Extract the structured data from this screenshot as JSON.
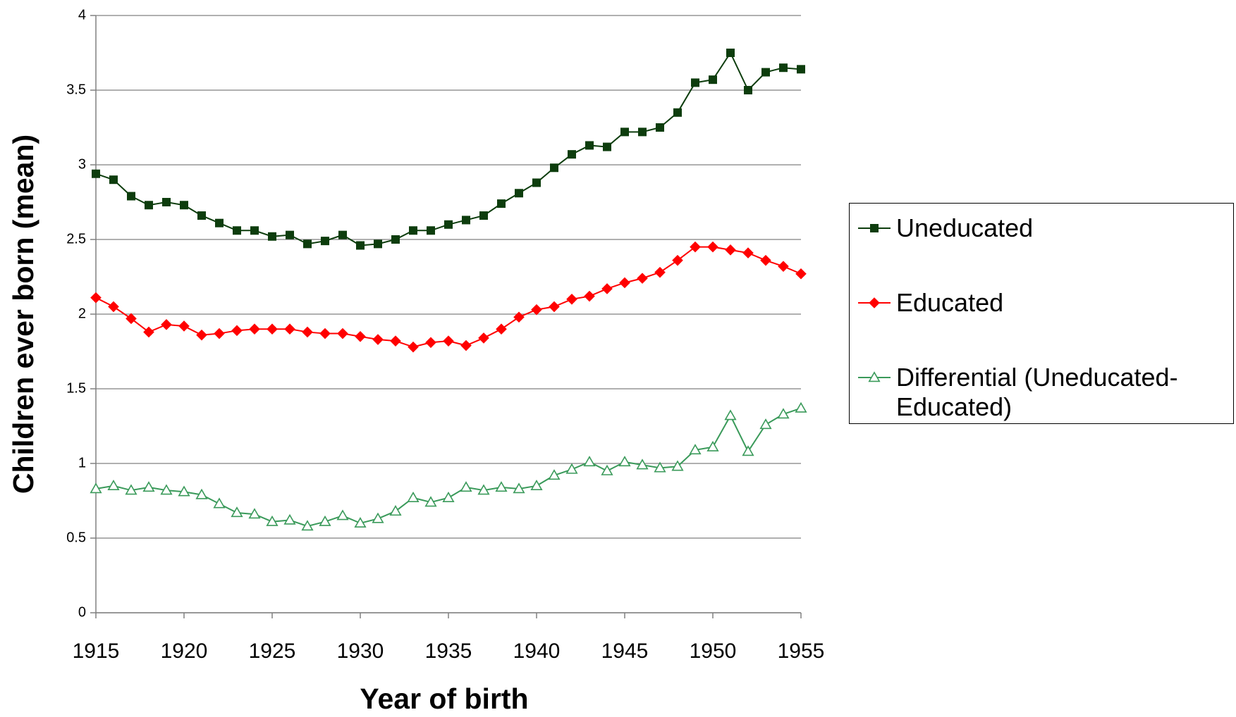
{
  "chart_data": {
    "type": "line",
    "x_label": "Year of birth",
    "y_label": "Children ever born (mean)",
    "x": [
      1915,
      1916,
      1917,
      1918,
      1919,
      1920,
      1921,
      1922,
      1923,
      1924,
      1925,
      1926,
      1927,
      1928,
      1929,
      1930,
      1931,
      1932,
      1933,
      1934,
      1935,
      1936,
      1937,
      1938,
      1939,
      1940,
      1941,
      1942,
      1943,
      1944,
      1945,
      1946,
      1947,
      1948,
      1949,
      1950,
      1951,
      1952,
      1953,
      1954,
      1955
    ],
    "series": [
      {
        "name": "Uneducated",
        "color": "#0d3d0d",
        "marker": "square",
        "values": [
          2.94,
          2.9,
          2.79,
          2.73,
          2.75,
          2.73,
          2.66,
          2.61,
          2.56,
          2.56,
          2.52,
          2.53,
          2.47,
          2.49,
          2.53,
          2.46,
          2.47,
          2.5,
          2.56,
          2.56,
          2.6,
          2.63,
          2.66,
          2.74,
          2.81,
          2.88,
          2.98,
          3.07,
          3.13,
          3.12,
          3.22,
          3.22,
          3.25,
          3.35,
          3.55,
          3.57,
          3.75,
          3.5,
          3.62,
          3.65,
          3.64
        ]
      },
      {
        "name": "Educated",
        "color": "#ff0000",
        "marker": "diamond",
        "values": [
          2.11,
          2.05,
          1.97,
          1.88,
          1.93,
          1.92,
          1.86,
          1.87,
          1.89,
          1.9,
          1.9,
          1.9,
          1.88,
          1.87,
          1.87,
          1.85,
          1.83,
          1.82,
          1.78,
          1.81,
          1.82,
          1.79,
          1.84,
          1.9,
          1.98,
          2.03,
          2.05,
          2.1,
          2.12,
          2.17,
          2.21,
          2.24,
          2.28,
          2.36,
          2.45,
          2.45,
          2.43,
          2.41,
          2.36,
          2.32,
          2.27
        ]
      },
      {
        "name": "Differential (Uneducated-Educated)",
        "color": "#3a9a5a",
        "marker": "triangle-open",
        "values": [
          0.83,
          0.85,
          0.82,
          0.84,
          0.82,
          0.81,
          0.79,
          0.73,
          0.67,
          0.66,
          0.61,
          0.62,
          0.58,
          0.61,
          0.65,
          0.6,
          0.63,
          0.68,
          0.77,
          0.74,
          0.77,
          0.84,
          0.82,
          0.84,
          0.83,
          0.85,
          0.92,
          0.96,
          1.01,
          0.95,
          1.01,
          0.99,
          0.97,
          0.98,
          1.09,
          1.11,
          1.32,
          1.08,
          1.26,
          1.33,
          1.37
        ]
      }
    ],
    "xlim": [
      1915,
      1955
    ],
    "xticks": [
      1915,
      1920,
      1925,
      1930,
      1935,
      1940,
      1945,
      1950,
      1955
    ],
    "ylim": [
      0,
      4
    ],
    "yticks": [
      0,
      0.5,
      1,
      1.5,
      2,
      2.5,
      3,
      3.5,
      4
    ],
    "grid": true,
    "legend": "right"
  }
}
